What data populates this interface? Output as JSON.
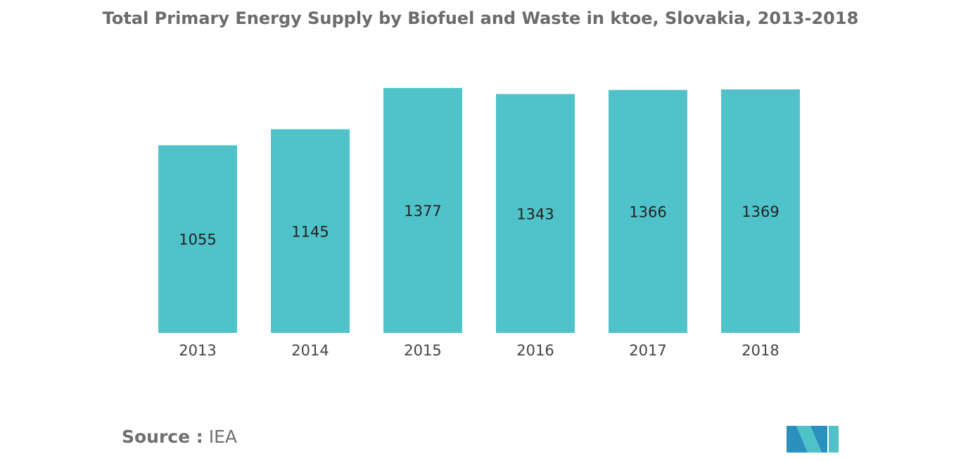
{
  "chart_data": {
    "type": "bar",
    "title": "Total Primary Energy Supply by Biofuel and Waste in ktoe, Slovakia, 2013-2018",
    "categories": [
      "2013",
      "2014",
      "2015",
      "2016",
      "2017",
      "2018"
    ],
    "values": [
      1055,
      1145,
      1377,
      1343,
      1366,
      1369
    ],
    "data_labels": [
      "1055",
      "1145",
      "1377",
      "1343",
      "1366",
      "1369"
    ],
    "xlabel": "",
    "ylabel": "",
    "ylim": [
      0,
      1400
    ],
    "grid": false,
    "legend": "none",
    "bar_color": "#50c3ca",
    "label_color": "#222222",
    "tick_color": "#444444"
  },
  "source": {
    "label": "Source :",
    "value": "IEA"
  },
  "logo": {
    "colors": [
      "#2b8fbf",
      "#4fc2c8"
    ]
  }
}
